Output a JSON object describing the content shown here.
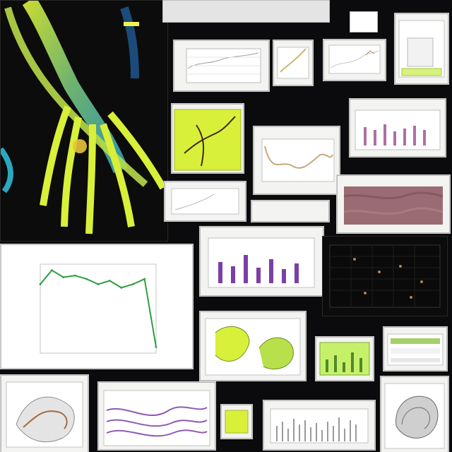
{
  "chart_data": {
    "type": "line",
    "title": "",
    "xlabel": "",
    "ylabel": "",
    "series": [
      {
        "values": [
          42,
          50,
          46,
          47,
          45,
          42,
          44,
          40,
          42,
          45,
          6
        ]
      }
    ],
    "color": "#2f9e3f"
  },
  "colors": {
    "background": "#0b0b0d",
    "accent_green": "#2f9e3f",
    "accent_yellow": "#d8f03a",
    "accent_purple": "#7b3fa6"
  },
  "icons": {
    "hand_anatomy": "hand-anatomy-illustration",
    "seashell": "seashell-image"
  }
}
